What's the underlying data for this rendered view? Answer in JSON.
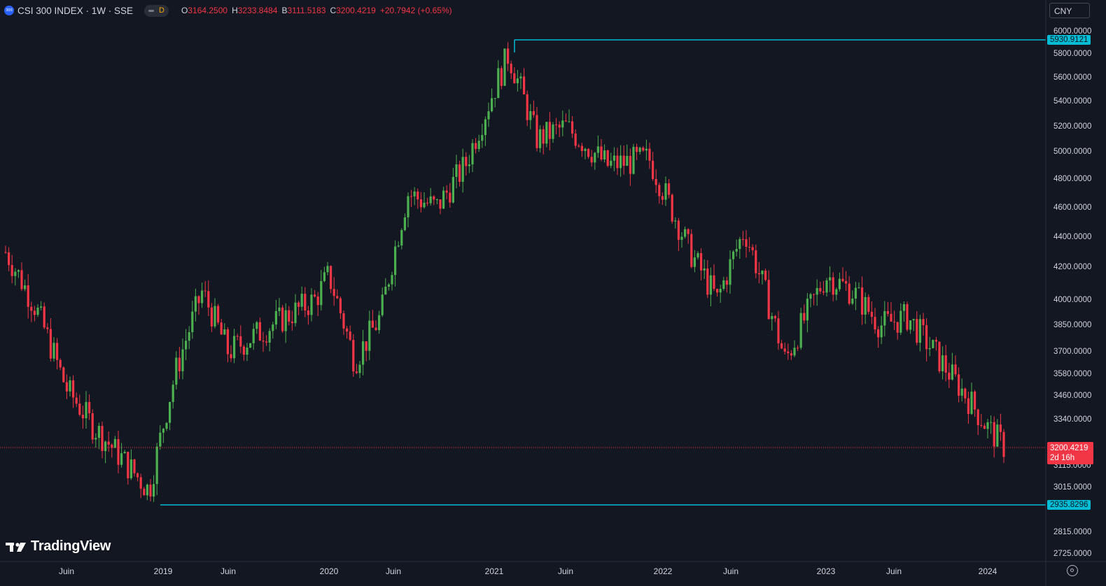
{
  "header": {
    "logo_text": "300",
    "symbol_title": "CSI 300 INDEX · 1W · SSE",
    "interval_badge": "D",
    "ohlc": [
      {
        "key": "O",
        "value": "3164.2500"
      },
      {
        "key": "H",
        "value": "3233.8484"
      },
      {
        "key": "B",
        "value": "3111.5183"
      },
      {
        "key": "C",
        "value": "3200.4219"
      }
    ],
    "change": "+20.7942 (+0.65%)"
  },
  "currency_label": "CNY",
  "price_axis": {
    "ticks": [
      "6000.0000",
      "5800.0000",
      "5600.0000",
      "5400.0000",
      "5200.0000",
      "5000.0000",
      "4800.0000",
      "4600.0000",
      "4400.0000",
      "4200.0000",
      "4000.0000",
      "3850.0000",
      "3700.0000",
      "3580.0000",
      "3460.0000",
      "3340.0000",
      "3115.0000",
      "3015.0000",
      "2815.0000",
      "2725.0000"
    ],
    "high_tag": "5930.9121",
    "low_tag": "2935.8296",
    "last_price": "3200.4219",
    "countdown": "2d 16h"
  },
  "time_axis": {
    "labels": [
      "Juin",
      "2019",
      "Juin",
      "2020",
      "Juin",
      "2021",
      "Juin",
      "2022",
      "Juin",
      "2023",
      "Juin",
      "2024"
    ]
  },
  "branding": {
    "name": "TradingView"
  },
  "colors": {
    "background": "#131722",
    "up": "#4caf50",
    "down": "#f23645",
    "range_line": "#00bcd4"
  },
  "chart_data": {
    "type": "candlestick",
    "title": "CSI 300 INDEX · 1W · SSE",
    "x_range": [
      "2018-02",
      "2024-02"
    ],
    "y_range": [
      2680,
      6060
    ],
    "y_scale": "log",
    "range_high": 5930.9121,
    "range_low": 2935.8296,
    "last_close": 3200.4219,
    "weekly_close_path": [
      {
        "date": "2018-02",
        "close": 4300
      },
      {
        "date": "2018-04",
        "close": 3950
      },
      {
        "date": "2018-06",
        "close": 3500
      },
      {
        "date": "2018-08",
        "close": 3300
      },
      {
        "date": "2018-10",
        "close": 3150
      },
      {
        "date": "2018-12",
        "close": 3000
      },
      {
        "date": "2019-02",
        "close": 3600
      },
      {
        "date": "2019-04",
        "close": 4050
      },
      {
        "date": "2019-06",
        "close": 3700
      },
      {
        "date": "2019-09",
        "close": 3850
      },
      {
        "date": "2019-12",
        "close": 4000
      },
      {
        "date": "2020-01",
        "close": 4150
      },
      {
        "date": "2020-03",
        "close": 3650
      },
      {
        "date": "2020-05",
        "close": 3900
      },
      {
        "date": "2020-07",
        "close": 4700
      },
      {
        "date": "2020-09",
        "close": 4600
      },
      {
        "date": "2020-11",
        "close": 4900
      },
      {
        "date": "2021-02",
        "close": 5800
      },
      {
        "date": "2021-04",
        "close": 5100
      },
      {
        "date": "2021-06",
        "close": 5200
      },
      {
        "date": "2021-09",
        "close": 4900
      },
      {
        "date": "2021-12",
        "close": 4950
      },
      {
        "date": "2022-03",
        "close": 4300
      },
      {
        "date": "2022-05",
        "close": 4000
      },
      {
        "date": "2022-07",
        "close": 4450
      },
      {
        "date": "2022-10",
        "close": 3650
      },
      {
        "date": "2023-01",
        "close": 4150
      },
      {
        "date": "2023-03",
        "close": 4050
      },
      {
        "date": "2023-05",
        "close": 3850
      },
      {
        "date": "2023-07",
        "close": 3900
      },
      {
        "date": "2023-09",
        "close": 3700
      },
      {
        "date": "2023-11",
        "close": 3500
      },
      {
        "date": "2024-01",
        "close": 3300
      },
      {
        "date": "2024-02",
        "close": 3200
      }
    ]
  }
}
